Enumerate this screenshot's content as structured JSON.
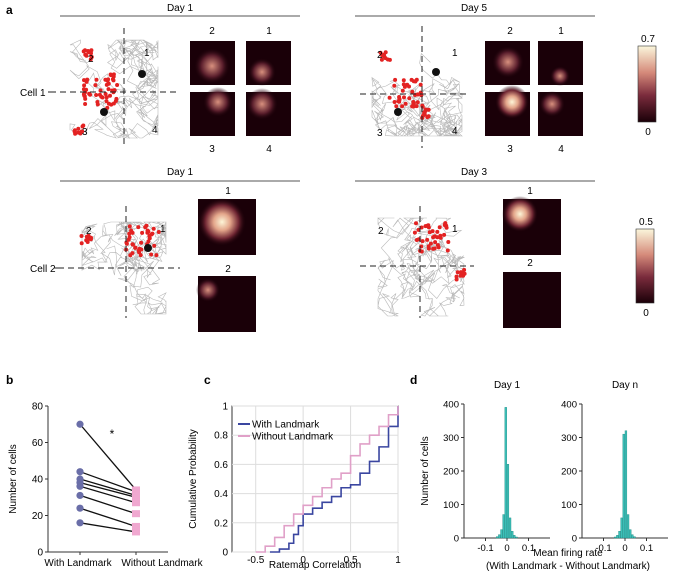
{
  "panel_a": {
    "label": "a",
    "cell1": {
      "row_label": "Cell 1",
      "left": {
        "title": "Day 1",
        "quadrants": [
          "1",
          "2",
          "3",
          "4"
        ]
      },
      "right": {
        "title": "Day 5",
        "quadrants": [
          "1",
          "2",
          "3",
          "4"
        ]
      },
      "colorbar": {
        "max": "0.7",
        "min": "0"
      }
    },
    "cell2": {
      "row_label": "Cell 2",
      "left": {
        "title": "Day 1",
        "quadrants": [
          "1",
          "2"
        ]
      },
      "right": {
        "title": "Day 3",
        "quadrants": [
          "1",
          "2"
        ]
      },
      "colorbar": {
        "max": "0.5",
        "min": "0"
      }
    }
  },
  "chart_data": [
    {
      "id": "b",
      "type": "scatter",
      "label": "b",
      "ylabel": "Number of cells",
      "categories": [
        "With Landmark",
        "Without Landmark"
      ],
      "ylim": [
        0,
        80
      ],
      "yticks": [
        "0",
        "20",
        "40",
        "60",
        "80"
      ],
      "pairs": [
        [
          70,
          34
        ],
        [
          44,
          33
        ],
        [
          40,
          31
        ],
        [
          38,
          30
        ],
        [
          36,
          27
        ],
        [
          31,
          21
        ],
        [
          24,
          14
        ],
        [
          16,
          11
        ]
      ],
      "significance": "*",
      "colors": {
        "with": "#6a6ea8",
        "without": "#f0a8d0"
      }
    },
    {
      "id": "c",
      "type": "line",
      "label": "c",
      "xlabel": "Ratemap Correlation",
      "ylabel": "Cumulative Probability",
      "xlim": [
        -0.75,
        1
      ],
      "ylim": [
        0,
        1
      ],
      "xticks": [
        "-0.5",
        "0",
        "0.5",
        "1"
      ],
      "yticks": [
        "0",
        "0.2",
        "0.4",
        "0.6",
        "0.8",
        "1"
      ],
      "series": [
        {
          "name": "With Landmark",
          "color": "#3a46a0",
          "x": [
            -0.35,
            -0.25,
            -0.15,
            -0.1,
            -0.05,
            0.0,
            0.1,
            0.2,
            0.3,
            0.4,
            0.5,
            0.6,
            0.7,
            0.8,
            0.9,
            1.0
          ],
          "y": [
            0,
            0.02,
            0.06,
            0.12,
            0.18,
            0.26,
            0.3,
            0.34,
            0.38,
            0.44,
            0.46,
            0.54,
            0.62,
            0.72,
            0.86,
            1.0
          ]
        },
        {
          "name": "Without Landmark",
          "color": "#e0a0c8",
          "x": [
            -0.5,
            -0.4,
            -0.3,
            -0.2,
            -0.1,
            0.0,
            0.1,
            0.2,
            0.3,
            0.4,
            0.5,
            0.6,
            0.7,
            0.8,
            0.9,
            1.0
          ],
          "y": [
            0,
            0.04,
            0.1,
            0.18,
            0.26,
            0.32,
            0.38,
            0.44,
            0.5,
            0.54,
            0.66,
            0.74,
            0.8,
            0.86,
            0.94,
            1.0
          ]
        }
      ]
    },
    {
      "id": "d1",
      "type": "bar",
      "label": "d",
      "title": "Day 1",
      "ylabel": "Number of cells",
      "ylim": [
        0,
        400
      ],
      "yticks": [
        "0",
        "100",
        "200",
        "300",
        "400"
      ],
      "xlim": [
        -0.2,
        0.2
      ],
      "xticks": [
        "-0.1",
        "0",
        "0.1"
      ],
      "bin_width": 0.01,
      "bins": [
        -0.05,
        -0.04,
        -0.03,
        -0.02,
        -0.01,
        0.0,
        0.01,
        0.02,
        0.03,
        0.04
      ],
      "values": [
        4,
        10,
        25,
        70,
        390,
        220,
        60,
        20,
        8,
        3
      ],
      "color": "#3cc0b8"
    },
    {
      "id": "dn",
      "type": "bar",
      "title": "Day n",
      "xlabel_lines": [
        "Mean firing rate",
        "(With Landmark - Without Landmark)"
      ],
      "ylim": [
        0,
        400
      ],
      "yticks": [
        "0",
        "100",
        "200",
        "300",
        "400"
      ],
      "xlim": [
        -0.2,
        0.2
      ],
      "xticks": [
        "-0.1",
        "0",
        "0.1"
      ],
      "bin_width": 0.01,
      "bins": [
        -0.05,
        -0.04,
        -0.03,
        -0.02,
        -0.01,
        0.0,
        0.01,
        0.02,
        0.03,
        0.04
      ],
      "values": [
        3,
        8,
        20,
        60,
        310,
        320,
        70,
        25,
        10,
        4
      ],
      "color": "#3cc0b8"
    }
  ]
}
